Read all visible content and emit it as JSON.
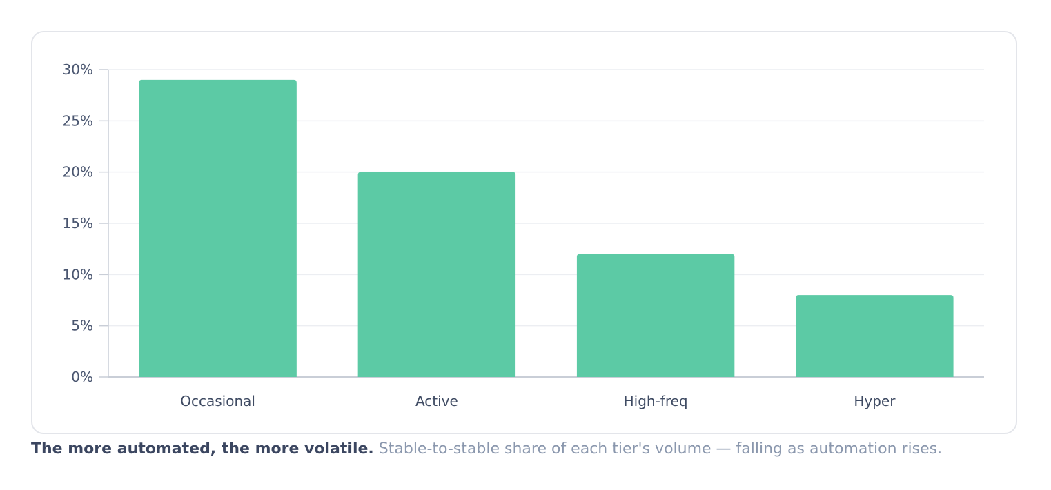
{
  "chart_data": {
    "type": "bar",
    "categories": [
      "Occasional",
      "Active",
      "High-freq",
      "Hyper"
    ],
    "values": [
      29,
      20,
      12,
      8
    ],
    "ylim": [
      0,
      30
    ],
    "yticks": [
      0,
      5,
      10,
      15,
      20,
      25,
      30
    ],
    "ytick_labels": [
      "0%",
      "5%",
      "10%",
      "15%",
      "20%",
      "25%",
      "30%"
    ],
    "bar_color": "#5ccaa5",
    "grid": true,
    "legend": "none"
  },
  "caption": {
    "title": "The more automated, the more volatile.",
    "text": "Stable-to-stable share of each tier's volume — falling as automation rises."
  }
}
